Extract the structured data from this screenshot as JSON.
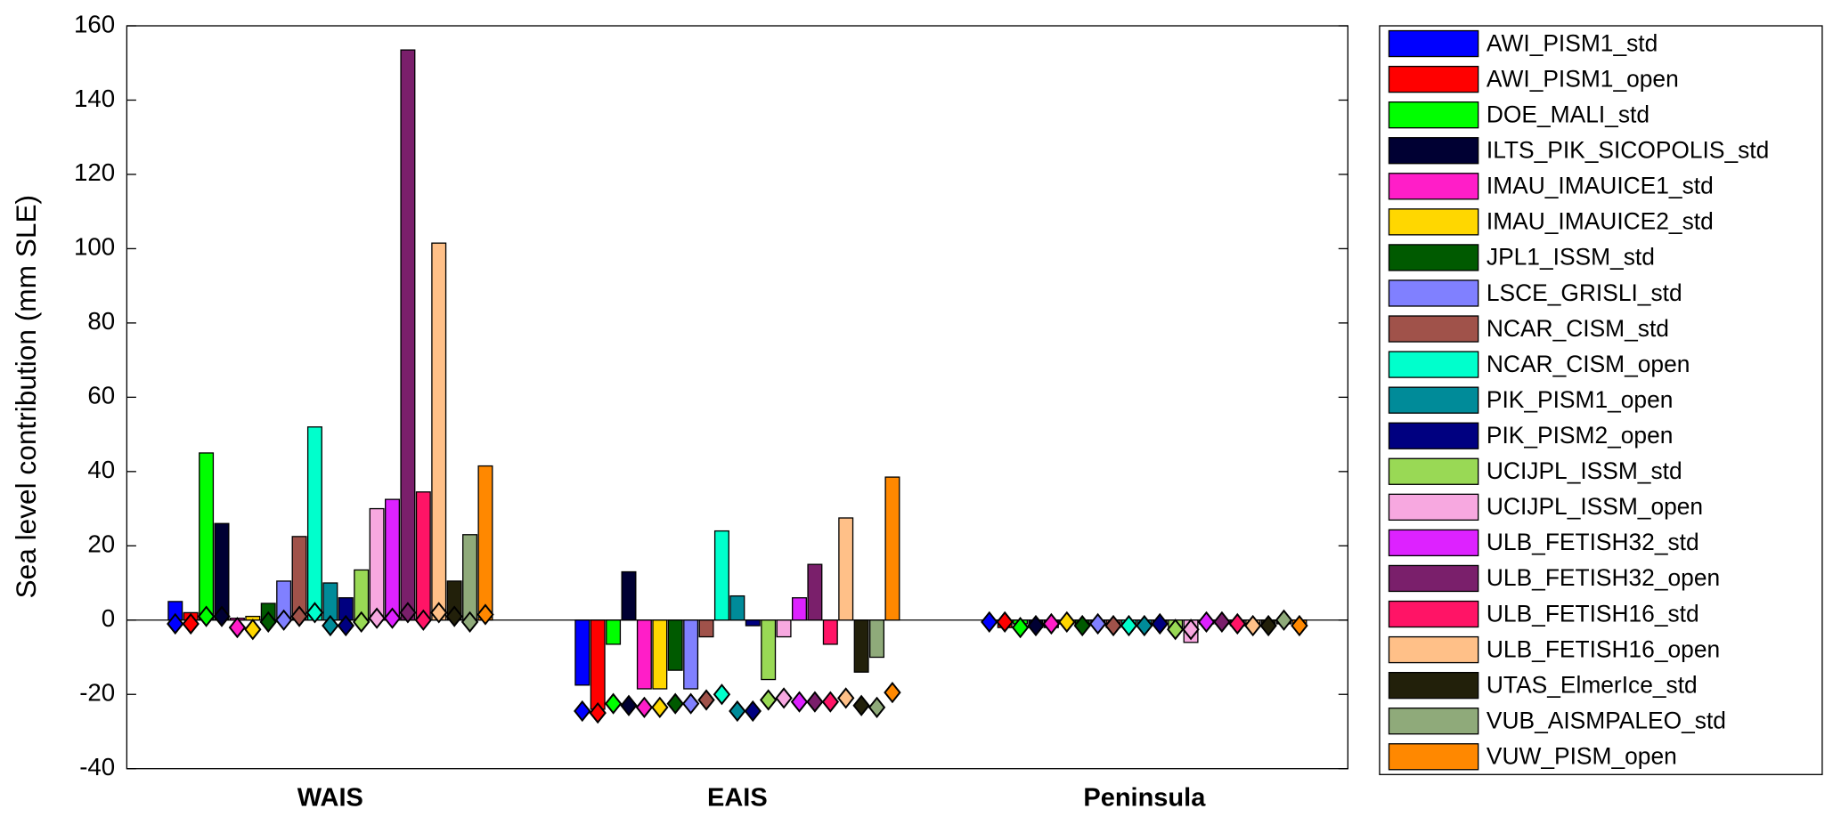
{
  "chart_data": {
    "type": "bar",
    "y_label": "Sea level contribution (mm SLE)",
    "categories": [
      "WAIS",
      "EAIS",
      "Peninsula"
    ],
    "ylim": [
      -40,
      160
    ],
    "yticks": [
      -40,
      -20,
      0,
      20,
      40,
      60,
      80,
      100,
      120,
      140,
      160
    ],
    "series": [
      {
        "name": "AWI_PISM1_std",
        "color": "#0000ff",
        "values": [
          5,
          -17.5,
          -0.5
        ],
        "markers": [
          -1,
          -24.5,
          -0.5
        ]
      },
      {
        "name": "AWI_PISM1_open",
        "color": "#ff0000",
        "values": [
          2,
          -24,
          -2
        ],
        "markers": [
          -1,
          -25,
          -0.5
        ]
      },
      {
        "name": "DOE_MALI_std",
        "color": "#00ff00",
        "values": [
          45,
          -6.5,
          -1
        ],
        "markers": [
          1,
          -22.5,
          -2
        ]
      },
      {
        "name": "ILTS_PIK_SICOPOLIS_std",
        "color": "#000033",
        "values": [
          26,
          13,
          -2
        ],
        "markers": [
          1,
          -23,
          -1.5
        ]
      },
      {
        "name": "IMAU_IMAUICE1_std",
        "color": "#ff1ec8",
        "values": [
          0.5,
          -18.5,
          -2
        ],
        "markers": [
          -2,
          -23.5,
          -1
        ]
      },
      {
        "name": "IMAU_IMAUICE2_std",
        "color": "#ffd700",
        "values": [
          1,
          -18.5,
          -1
        ],
        "markers": [
          -2.5,
          -23.5,
          -0.5
        ]
      },
      {
        "name": "JPL1_ISSM_std",
        "color": "#005a00",
        "values": [
          4.5,
          -13.5,
          -1.5
        ],
        "markers": [
          -0.5,
          -22.5,
          -1.5
        ]
      },
      {
        "name": "LSCE_GRISLI_std",
        "color": "#8080ff",
        "values": [
          10.5,
          -18.5,
          -1
        ],
        "markers": [
          0,
          -22.5,
          -1
        ]
      },
      {
        "name": "NCAR_CISM_std",
        "color": "#a0524a",
        "values": [
          22.5,
          -4.5,
          -2
        ],
        "markers": [
          1,
          -21.5,
          -1.5
        ]
      },
      {
        "name": "NCAR_CISM_open",
        "color": "#00ffcc",
        "values": [
          52,
          24,
          -1
        ],
        "markers": [
          2,
          -20,
          -1.5
        ]
      },
      {
        "name": "PIK_PISM1_open",
        "color": "#008b99",
        "values": [
          10,
          6.5,
          -1
        ],
        "markers": [
          -1.5,
          -24.5,
          -1.5
        ]
      },
      {
        "name": "PIK_PISM2_open",
        "color": "#000080",
        "values": [
          6,
          -1.5,
          -1
        ],
        "markers": [
          -1.5,
          -24.5,
          -1
        ]
      },
      {
        "name": "UCIJPL_ISSM_std",
        "color": "#99d955",
        "values": [
          13.5,
          -16,
          -2.5
        ],
        "markers": [
          -0.5,
          -21.5,
          -2.5
        ]
      },
      {
        "name": "UCIJPL_ISSM_open",
        "color": "#f7a8e0",
        "values": [
          30,
          -4.5,
          -6
        ],
        "markers": [
          0.5,
          -21,
          -2.5
        ]
      },
      {
        "name": "ULB_FETISH32_std",
        "color": "#dd22ff",
        "values": [
          32.5,
          6,
          -1
        ],
        "markers": [
          0.5,
          -22,
          -0.5
        ]
      },
      {
        "name": "ULB_FETISH32_open",
        "color": "#7a1f6b",
        "values": [
          153.5,
          15,
          -1
        ],
        "markers": [
          2,
          -22,
          -0.5
        ]
      },
      {
        "name": "ULB_FETISH16_std",
        "color": "#ff1466",
        "values": [
          34.5,
          -6.5,
          -1.5
        ],
        "markers": [
          0,
          -22,
          -1
        ]
      },
      {
        "name": "ULB_FETISH16_open",
        "color": "#ffc088",
        "values": [
          101.5,
          27.5,
          -1
        ],
        "markers": [
          2,
          -21,
          -1.5
        ]
      },
      {
        "name": "UTAS_ElmerIce_std",
        "color": "#22200a",
        "values": [
          10.5,
          -14,
          -1
        ],
        "markers": [
          1,
          -23,
          -1.5
        ]
      },
      {
        "name": "VUB_AISMPALEO_std",
        "color": "#8faa7a",
        "values": [
          23,
          -10,
          -1
        ],
        "markers": [
          -0.5,
          -23.5,
          0
        ]
      },
      {
        "name": "VUW_PISM_open",
        "color": "#ff8800",
        "values": [
          41.5,
          38.5,
          -1
        ],
        "markers": [
          1.5,
          -19.5,
          -1.5
        ]
      }
    ]
  }
}
